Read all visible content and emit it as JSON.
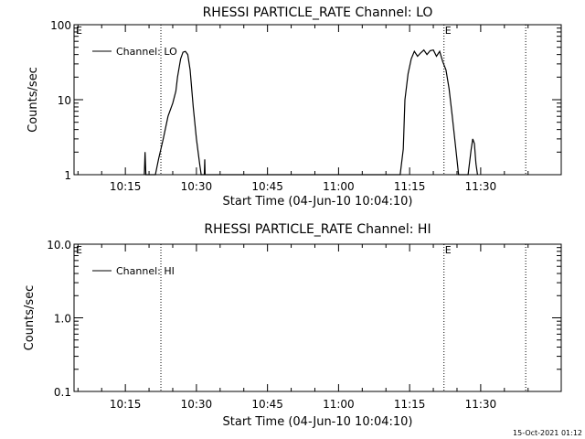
{
  "footer": {
    "timestamp": "15-Oct-2021 01:12"
  },
  "chart_data": [
    {
      "type": "line",
      "title": "RHESSI PARTICLE_RATE Channel: LO",
      "xlabel": "Start Time (04-Jun-10 10:04:10)",
      "ylabel": "Counts/sec",
      "yscale": "log",
      "xlim": [
        "10:04:10",
        "11:47:00"
      ],
      "ylim": [
        1,
        100
      ],
      "xticks": [
        "10:15",
        "10:30",
        "10:45",
        "11:00",
        "11:15",
        "11:30"
      ],
      "yticks": [
        "1",
        "10",
        "100"
      ],
      "legend": {
        "label": "Channel: LO",
        "placement": "top-left"
      },
      "markers": [
        {
          "time": "10:22:30",
          "label": "E"
        },
        {
          "time": "11:22:15",
          "label": "E"
        },
        {
          "time": "11:39:30",
          "label": ""
        }
      ],
      "series": [
        {
          "name": "Channel: LO",
          "points": [
            [
              "10:19:00",
              1
            ],
            [
              "10:19:10",
              2.0
            ],
            [
              "10:19:20",
              1
            ],
            [
              "10:21:20",
              1
            ],
            [
              "10:22:00",
              1.6
            ],
            [
              "10:23:00",
              3.0
            ],
            [
              "10:24:00",
              6.0
            ],
            [
              "10:25:00",
              9.0
            ],
            [
              "10:25:40",
              13
            ],
            [
              "10:26:00",
              20
            ],
            [
              "10:26:40",
              35
            ],
            [
              "10:27:10",
              43
            ],
            [
              "10:27:40",
              44
            ],
            [
              "10:28:10",
              40
            ],
            [
              "10:28:40",
              25
            ],
            [
              "10:29:20",
              8
            ],
            [
              "10:30:00",
              3
            ],
            [
              "10:30:40",
              1.4
            ],
            [
              "10:31:00",
              1
            ],
            [
              "10:31:40",
              1
            ],
            [
              "10:31:45",
              1.6
            ],
            [
              "10:31:50",
              1
            ],
            [
              "11:13:00",
              1
            ],
            [
              "11:13:40",
              2.2
            ],
            [
              "11:14:00",
              10
            ],
            [
              "11:14:40",
              22
            ],
            [
              "11:15:20",
              35
            ],
            [
              "11:16:00",
              44
            ],
            [
              "11:16:40",
              38
            ],
            [
              "11:17:20",
              42
            ],
            [
              "11:18:00",
              46
            ],
            [
              "11:18:40",
              40
            ],
            [
              "11:19:20",
              45
            ],
            [
              "11:20:00",
              46
            ],
            [
              "11:20:40",
              38
            ],
            [
              "11:21:20",
              44
            ],
            [
              "11:22:00",
              32
            ],
            [
              "11:22:40",
              25
            ],
            [
              "11:23:20",
              14
            ],
            [
              "11:24:00",
              6
            ],
            [
              "11:24:40",
              2.5
            ],
            [
              "11:25:20",
              1
            ],
            [
              "11:27:20",
              1
            ],
            [
              "11:28:00",
              2.2
            ],
            [
              "11:28:20",
              3.0
            ],
            [
              "11:28:40",
              2.6
            ],
            [
              "11:29:00",
              1.4
            ],
            [
              "11:29:20",
              1
            ]
          ]
        }
      ]
    },
    {
      "type": "line",
      "title": "RHESSI PARTICLE_RATE Channel: HI",
      "xlabel": "Start Time (04-Jun-10 10:04:10)",
      "ylabel": "Counts/sec",
      "yscale": "log",
      "xlim": [
        "10:04:10",
        "11:47:00"
      ],
      "ylim": [
        0.1,
        10
      ],
      "xticks": [
        "10:15",
        "10:30",
        "10:45",
        "11:00",
        "11:15",
        "11:30"
      ],
      "yticks": [
        "0.1",
        "1.0",
        "10.0"
      ],
      "legend": {
        "label": "Channel: HI",
        "placement": "top-left"
      },
      "markers": [
        {
          "time": "10:22:30",
          "label": "E"
        },
        {
          "time": "11:22:15",
          "label": "E"
        },
        {
          "time": "11:39:30",
          "label": ""
        }
      ],
      "series": [
        {
          "name": "Channel: HI",
          "points": []
        }
      ]
    }
  ]
}
